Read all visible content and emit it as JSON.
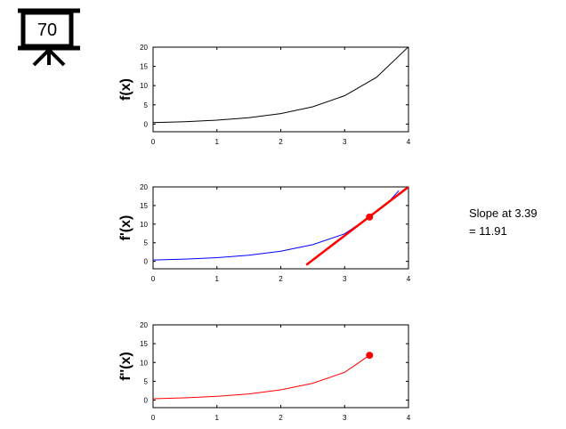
{
  "presenter": {
    "badge": "70",
    "icon": "presentation-board-icon"
  },
  "annotation": {
    "line1": "Slope at 3.39",
    "line2": "= 11.91"
  },
  "chart_data": [
    {
      "type": "line",
      "ylabel": "f(x)",
      "xlim": [
        0,
        4
      ],
      "ylim": [
        -2,
        20
      ],
      "xticks": [
        0,
        1,
        2,
        3,
        4
      ],
      "yticks": [
        0,
        5,
        10,
        15,
        20
      ],
      "series": [
        {
          "color": "#000000",
          "x": [
            0,
            0.5,
            1,
            1.5,
            2,
            2.5,
            3,
            3.5,
            4
          ],
          "y": [
            0.37,
            0.61,
            1.0,
            1.65,
            2.72,
            4.48,
            7.39,
            12.18,
            20.09
          ]
        }
      ]
    },
    {
      "type": "line",
      "ylabel": "f'(x)",
      "xlim": [
        0,
        4
      ],
      "ylim": [
        -2,
        20
      ],
      "xticks": [
        0,
        1,
        2,
        3,
        4
      ],
      "yticks": [
        0,
        5,
        10,
        15,
        20
      ],
      "series": [
        {
          "color": "#0000ff",
          "x": [
            0,
            0.5,
            1,
            1.5,
            2,
            2.5,
            3,
            3.39,
            3.7,
            3.85
          ],
          "y": [
            0.37,
            0.61,
            1.0,
            1.65,
            2.72,
            4.48,
            7.39,
            11.91,
            16.2,
            19.0
          ]
        },
        {
          "color": "#ff0000",
          "style": "tangent",
          "x": [
            2.4,
            4.0
          ],
          "y": [
            -0.94,
            20.0
          ]
        }
      ],
      "points": [
        {
          "x": 3.39,
          "y": 11.91,
          "color": "#ff0000"
        }
      ]
    },
    {
      "type": "line",
      "ylabel": "f''(x)",
      "xlim": [
        0,
        4
      ],
      "ylim": [
        -2,
        20
      ],
      "xticks": [
        0,
        1,
        2,
        3,
        4
      ],
      "yticks": [
        0,
        5,
        10,
        15,
        20
      ],
      "series": [
        {
          "color": "#ff0000",
          "x": [
            0,
            0.5,
            1,
            1.5,
            2,
            2.5,
            3,
            3.39
          ],
          "y": [
            0.37,
            0.61,
            1.0,
            1.65,
            2.72,
            4.48,
            7.39,
            11.91
          ]
        }
      ],
      "points": [
        {
          "x": 3.39,
          "y": 11.91,
          "color": "#ff0000"
        }
      ]
    }
  ]
}
